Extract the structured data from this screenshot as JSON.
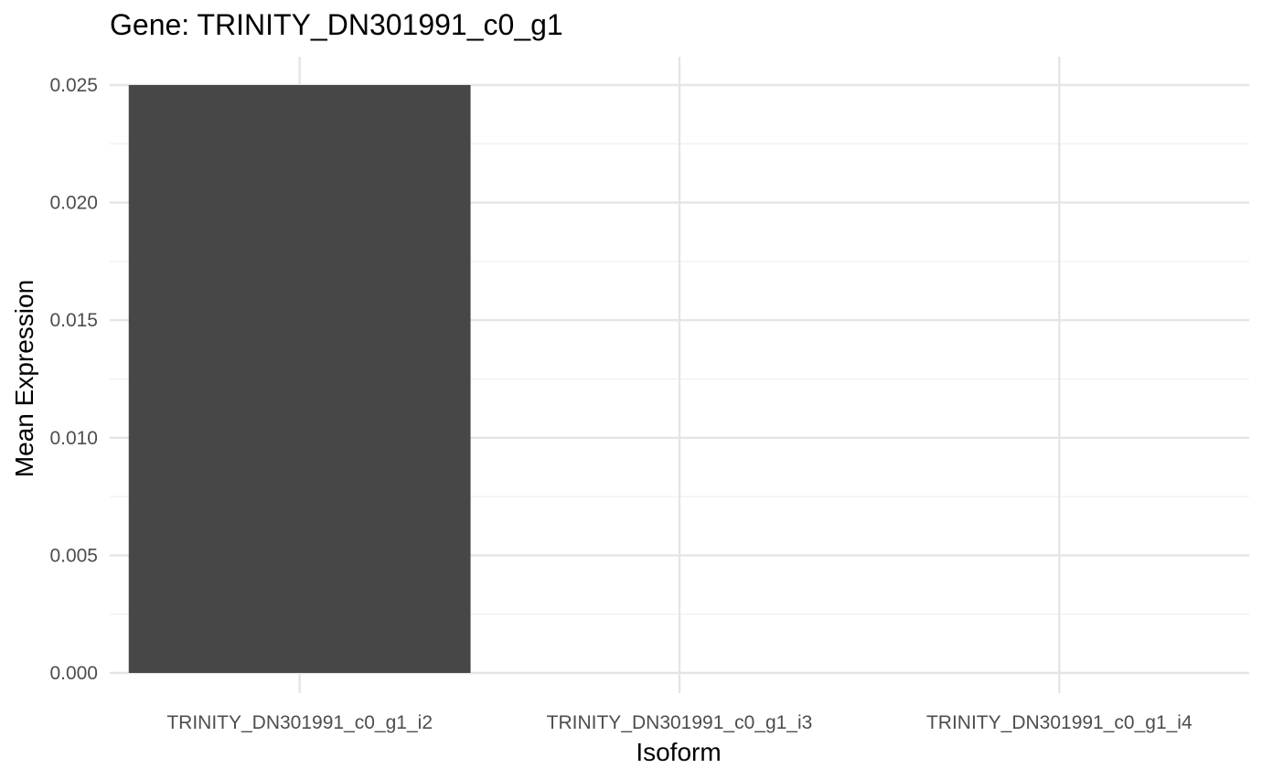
{
  "chart_data": {
    "type": "bar",
    "title": "Gene: TRINITY_DN301991_c0_g1",
    "xlabel": "Isoform",
    "ylabel": "Mean Expression",
    "categories": [
      "TRINITY_DN301991_c0_g1_i2",
      "TRINITY_DN301991_c0_g1_i3",
      "TRINITY_DN301991_c0_g1_i4"
    ],
    "values": [
      0.025,
      0,
      0
    ],
    "ylim": [
      0,
      0.025
    ],
    "yticks": [
      "0.000",
      "0.005",
      "0.010",
      "0.015",
      "0.020",
      "0.025"
    ],
    "grid": true,
    "legend": "none",
    "colors": {
      "bar": "#474747",
      "grid_major": "#e5e5e5",
      "grid_minor": "#f0f0f0",
      "tick_text": "#4d4d4d"
    }
  }
}
